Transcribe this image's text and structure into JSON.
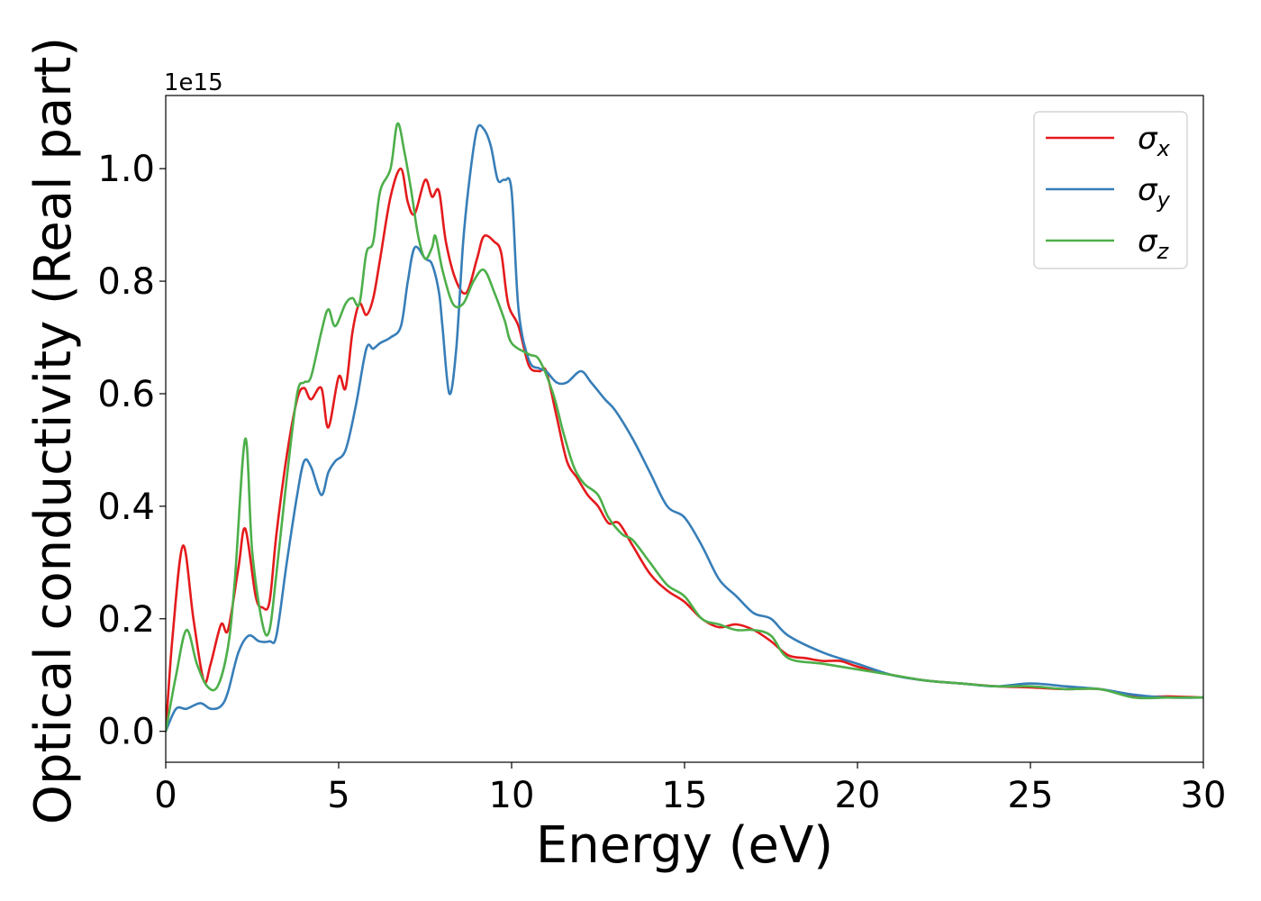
{
  "chart_data": {
    "type": "line",
    "title": "",
    "xlabel": "Energy (eV)",
    "ylabel": "Optical conductivity (Real part)",
    "y_offset_label": "1e15",
    "xlim": [
      0,
      30
    ],
    "ylim": [
      -0.055,
      1.13
    ],
    "xticks": [
      0,
      5,
      10,
      15,
      20,
      25,
      30
    ],
    "xtick_labels": [
      "0",
      "5",
      "10",
      "15",
      "20",
      "25",
      "30"
    ],
    "yticks": [
      0.0,
      0.2,
      0.4,
      0.6,
      0.8,
      1.0
    ],
    "ytick_labels": [
      "0.0",
      "0.2",
      "0.4",
      "0.6",
      "0.8",
      "1.0"
    ],
    "grid": false,
    "legend_position": "top-right",
    "series": [
      {
        "name": "σx",
        "symbol": "σ",
        "subscript": "x",
        "color": "#e41a1c",
        "x": [
          0,
          0.2,
          0.5,
          0.8,
          1.1,
          1.3,
          1.6,
          1.8,
          2.1,
          2.3,
          2.6,
          2.8,
          3.0,
          3.2,
          3.5,
          3.8,
          4.0,
          4.2,
          4.5,
          4.7,
          5.0,
          5.2,
          5.4,
          5.6,
          5.8,
          6.0,
          6.2,
          6.5,
          6.8,
          7.0,
          7.2,
          7.5,
          7.7,
          7.9,
          8.1,
          8.4,
          8.7,
          9.0,
          9.2,
          9.5,
          9.7,
          9.9,
          10.2,
          10.5,
          10.8,
          11.0,
          11.3,
          11.6,
          11.9,
          12.2,
          12.5,
          12.8,
          13.1,
          13.5,
          14.0,
          14.5,
          15.0,
          15.5,
          16.0,
          16.5,
          17.0,
          17.5,
          18.0,
          18.5,
          19.0,
          19.5,
          20.0,
          21.0,
          22.0,
          23.0,
          24.0,
          25.0,
          26.0,
          27.0,
          28.0,
          29.0,
          30.0
        ],
        "y": [
          0.0,
          0.17,
          0.33,
          0.2,
          0.09,
          0.12,
          0.19,
          0.18,
          0.29,
          0.36,
          0.24,
          0.22,
          0.23,
          0.35,
          0.49,
          0.59,
          0.61,
          0.59,
          0.61,
          0.54,
          0.63,
          0.61,
          0.71,
          0.76,
          0.74,
          0.77,
          0.84,
          0.95,
          1.0,
          0.94,
          0.92,
          0.98,
          0.95,
          0.96,
          0.87,
          0.8,
          0.78,
          0.84,
          0.88,
          0.87,
          0.85,
          0.76,
          0.72,
          0.65,
          0.64,
          0.64,
          0.56,
          0.48,
          0.45,
          0.42,
          0.4,
          0.37,
          0.37,
          0.33,
          0.28,
          0.25,
          0.23,
          0.2,
          0.185,
          0.19,
          0.18,
          0.16,
          0.135,
          0.13,
          0.125,
          0.125,
          0.115,
          0.1,
          0.09,
          0.085,
          0.08,
          0.078,
          0.075,
          0.075,
          0.062,
          0.062,
          0.06
        ]
      },
      {
        "name": "σy",
        "symbol": "σ",
        "subscript": "y",
        "color": "#377eb8",
        "x": [
          0,
          0.3,
          0.6,
          1.0,
          1.3,
          1.6,
          1.8,
          2.1,
          2.4,
          2.7,
          3.0,
          3.2,
          3.5,
          3.8,
          4.0,
          4.2,
          4.5,
          4.7,
          4.9,
          5.2,
          5.5,
          5.8,
          6.0,
          6.2,
          6.5,
          6.8,
          7.0,
          7.2,
          7.5,
          7.7,
          7.9,
          8.0,
          8.2,
          8.4,
          8.6,
          8.8,
          9.0,
          9.2,
          9.4,
          9.6,
          9.8,
          10.0,
          10.2,
          10.5,
          10.8,
          11.0,
          11.3,
          11.6,
          12.0,
          12.3,
          12.7,
          13.0,
          13.5,
          14.0,
          14.5,
          15.0,
          15.5,
          16.0,
          16.5,
          17.0,
          17.5,
          18.0,
          19.0,
          20.0,
          21.0,
          22.0,
          23.0,
          24.0,
          25.0,
          26.0,
          27.0,
          28.0,
          29.0,
          30.0
        ],
        "y": [
          0.0,
          0.04,
          0.04,
          0.05,
          0.04,
          0.045,
          0.07,
          0.14,
          0.17,
          0.16,
          0.16,
          0.17,
          0.3,
          0.42,
          0.48,
          0.47,
          0.42,
          0.46,
          0.48,
          0.5,
          0.58,
          0.68,
          0.68,
          0.69,
          0.7,
          0.72,
          0.8,
          0.86,
          0.84,
          0.83,
          0.78,
          0.72,
          0.6,
          0.68,
          0.87,
          0.99,
          1.07,
          1.07,
          1.04,
          0.98,
          0.98,
          0.96,
          0.75,
          0.66,
          0.645,
          0.64,
          0.62,
          0.62,
          0.64,
          0.62,
          0.59,
          0.57,
          0.52,
          0.46,
          0.4,
          0.38,
          0.33,
          0.27,
          0.24,
          0.21,
          0.2,
          0.17,
          0.14,
          0.12,
          0.1,
          0.09,
          0.085,
          0.08,
          0.085,
          0.08,
          0.075,
          0.065,
          0.06,
          0.06
        ]
      },
      {
        "name": "σz",
        "symbol": "σ",
        "subscript": "z",
        "color": "#4daf4a",
        "x": [
          0,
          0.3,
          0.6,
          0.9,
          1.2,
          1.5,
          1.8,
          2.0,
          2.3,
          2.5,
          2.8,
          3.0,
          3.2,
          3.5,
          3.8,
          4.0,
          4.2,
          4.5,
          4.7,
          4.9,
          5.2,
          5.4,
          5.6,
          5.8,
          6.0,
          6.2,
          6.5,
          6.7,
          6.9,
          7.1,
          7.3,
          7.5,
          7.7,
          7.8,
          8.0,
          8.3,
          8.6,
          8.9,
          9.2,
          9.5,
          9.8,
          10.0,
          10.5,
          10.8,
          11.2,
          11.5,
          11.8,
          12.1,
          12.5,
          12.8,
          13.2,
          13.5,
          14.0,
          14.5,
          15.0,
          15.5,
          16.0,
          16.5,
          17.0,
          17.5,
          18.0,
          19.0,
          20.0,
          21.0,
          22.0,
          23.0,
          24.0,
          25.0,
          26.0,
          27.0,
          28.0,
          29.0,
          30.0
        ],
        "y": [
          0.0,
          0.1,
          0.18,
          0.12,
          0.08,
          0.08,
          0.15,
          0.27,
          0.52,
          0.32,
          0.19,
          0.18,
          0.28,
          0.45,
          0.6,
          0.62,
          0.63,
          0.71,
          0.75,
          0.72,
          0.76,
          0.77,
          0.76,
          0.85,
          0.87,
          0.96,
          1.0,
          1.08,
          1.03,
          0.96,
          0.88,
          0.84,
          0.86,
          0.88,
          0.82,
          0.76,
          0.76,
          0.8,
          0.82,
          0.78,
          0.73,
          0.69,
          0.67,
          0.66,
          0.6,
          0.53,
          0.47,
          0.44,
          0.42,
          0.38,
          0.35,
          0.34,
          0.3,
          0.26,
          0.24,
          0.2,
          0.19,
          0.18,
          0.18,
          0.17,
          0.13,
          0.12,
          0.11,
          0.1,
          0.09,
          0.085,
          0.08,
          0.08,
          0.075,
          0.075,
          0.06,
          0.06,
          0.06
        ]
      }
    ]
  }
}
